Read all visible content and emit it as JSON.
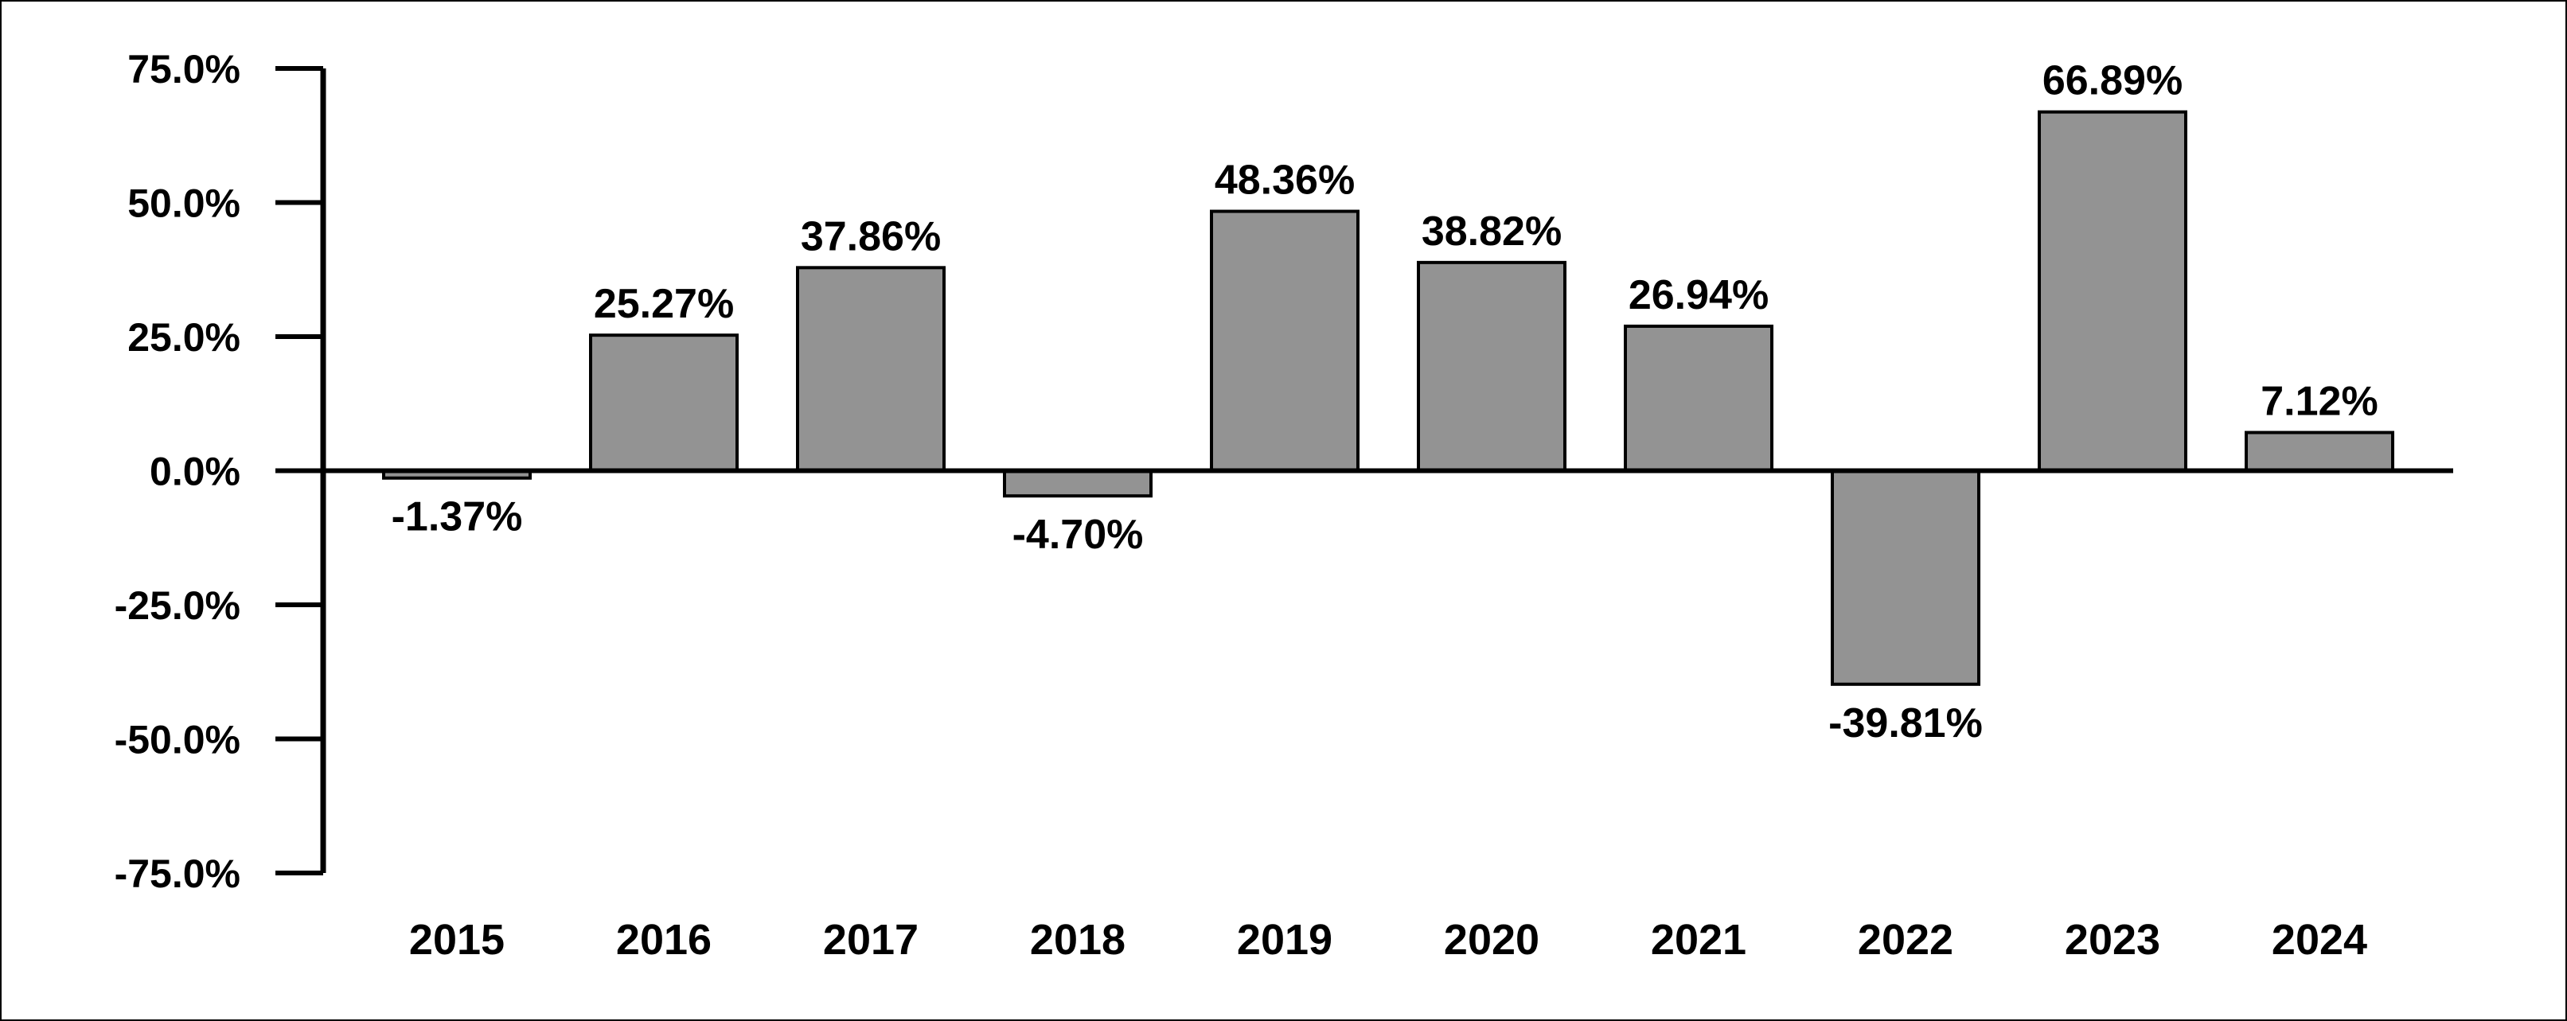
{
  "chart_data": {
    "type": "bar",
    "categories": [
      "2015",
      "2016",
      "2017",
      "2018",
      "2019",
      "2020",
      "2021",
      "2022",
      "2023",
      "2024"
    ],
    "values": [
      -1.37,
      25.27,
      37.86,
      -4.7,
      48.36,
      38.82,
      26.94,
      -39.81,
      66.89,
      7.12
    ],
    "data_labels": [
      "-1.37%",
      "25.27%",
      "37.86%",
      "-4.70%",
      "48.36%",
      "38.82%",
      "26.94%",
      "-39.81%",
      "66.89%",
      "7.12%"
    ],
    "ylim": [
      -75,
      75
    ],
    "yticks": [
      75,
      50,
      25,
      0,
      -25,
      -50,
      -75
    ],
    "ytick_labels": [
      "75.0%",
      "50.0%",
      "25.0%",
      "0.0%",
      "-25.0%",
      "-50.0%",
      "-75.0%"
    ],
    "title": "",
    "xlabel": "",
    "ylabel": "",
    "grid": false,
    "legend": "none",
    "colors": {
      "bar_fill": "#939393",
      "bar_stroke": "#000000",
      "axis": "#000000",
      "text": "#000000"
    }
  }
}
